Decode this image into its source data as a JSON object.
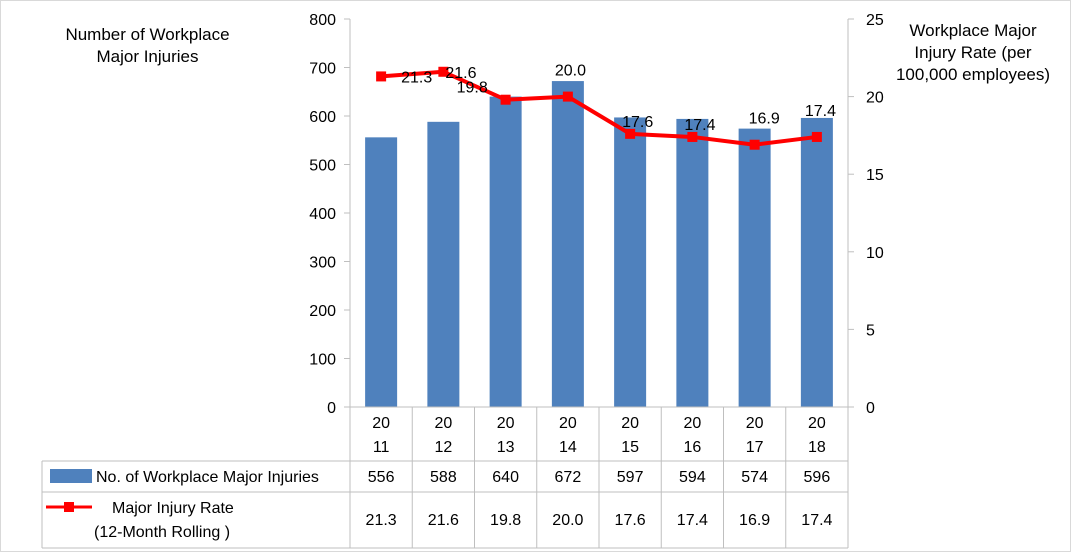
{
  "chart_data": {
    "type": "bar",
    "categories": [
      "2011",
      "2012",
      "2013",
      "2014",
      "2015",
      "2016",
      "2017",
      "2018"
    ],
    "category_labels": [
      [
        "20",
        "11"
      ],
      [
        "20",
        "12"
      ],
      [
        "20",
        "13"
      ],
      [
        "20",
        "14"
      ],
      [
        "20",
        "15"
      ],
      [
        "20",
        "16"
      ],
      [
        "20",
        "17"
      ],
      [
        "20",
        "18"
      ]
    ],
    "series": [
      {
        "name": "No. of Workplace Major Injuries",
        "type": "bar",
        "axis": "left",
        "color": "#4f81bd",
        "values": [
          556,
          588,
          640,
          672,
          597,
          594,
          574,
          596
        ]
      },
      {
        "name_lines": [
          "Major Injury Rate",
          "(12-Month Rolling )"
        ],
        "type": "line",
        "axis": "right",
        "color": "#ff0000",
        "values": [
          21.3,
          21.6,
          19.8,
          20.0,
          17.6,
          17.4,
          16.9,
          17.4
        ],
        "labels": [
          "21.3",
          "21.6",
          "19.8",
          "20.0",
          "17.6",
          "17.4",
          "16.9",
          "17.4"
        ]
      }
    ],
    "y_left": {
      "title": "Number of Workplace Major Injuries",
      "range": [
        0,
        800
      ],
      "ticks": [
        0,
        100,
        200,
        300,
        400,
        500,
        600,
        700,
        800
      ]
    },
    "y_right": {
      "title": "Workplace Major Injury Rate (per 100,000 employees)",
      "range": [
        0,
        25
      ],
      "ticks": [
        0,
        5,
        10,
        15,
        20,
        25
      ]
    },
    "data_table": true,
    "legend": "data-table",
    "grid": false
  },
  "axis_titles": {
    "left_lines": [
      "Number of Workplace",
      "Major Injuries"
    ],
    "right_lines": [
      "Workplace Major",
      "Injury Rate (per",
      "100,000 employees)"
    ]
  }
}
